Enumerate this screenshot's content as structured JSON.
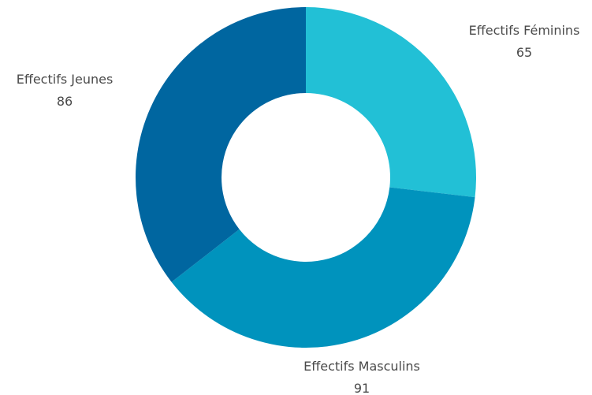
{
  "chart_data": {
    "type": "pie",
    "donut": true,
    "slices": [
      {
        "label": "Effectifs Féminins",
        "value": 65,
        "color": "#22c0d6"
      },
      {
        "label": "Effectifs Masculins",
        "value": 91,
        "color": "#0093bd"
      },
      {
        "label": "Effectifs Jeunes",
        "value": 86,
        "color": "#0066a0"
      }
    ],
    "legend": "none",
    "data_labels": "outside, category name with value below"
  }
}
